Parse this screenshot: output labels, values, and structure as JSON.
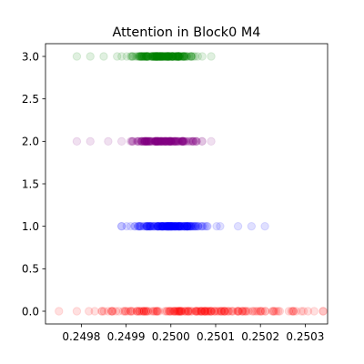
{
  "chart_data": {
    "type": "scatter",
    "title": "Attention in Block0 M4",
    "xlabel": "",
    "ylabel": "",
    "xlim": [
      0.24972,
      0.25035
    ],
    "ylim": [
      -0.15,
      3.15
    ],
    "x_ticks": [
      0.2498,
      0.2499,
      0.25,
      0.2501,
      0.2502,
      0.2503
    ],
    "x_tick_labels": [
      "0.2498",
      "0.2499",
      "0.2500",
      "0.2501",
      "0.2502",
      "0.2503"
    ],
    "y_ticks": [
      0,
      0.5,
      1,
      1.5,
      2,
      2.5,
      3
    ],
    "y_tick_labels": [
      "0.0",
      "0.5",
      "1.0",
      "1.5",
      "2.0",
      "2.5",
      "3.0"
    ],
    "grid": false,
    "legend": "none",
    "marker_opacity": 0.12,
    "series": [
      {
        "color": "#ff0000",
        "y": 0,
        "x_range": [
          0.24975,
          0.25034
        ],
        "x_core": [
          0.24985,
          0.25025
        ],
        "x_sample": [
          0.24975,
          0.24979,
          0.24983,
          0.24987,
          0.24991,
          0.24994,
          0.24997,
          0.25,
          0.25003,
          0.25006,
          0.25009,
          0.25012,
          0.25016,
          0.2502,
          0.25024,
          0.25028,
          0.25032,
          0.25034
        ]
      },
      {
        "color": "#0000ff",
        "y": 1,
        "x_range": [
          0.24989,
          0.25021
        ],
        "x_core": [
          0.24993,
          0.25007
        ],
        "x_sample": [
          0.24989,
          0.24991,
          0.24993,
          0.24995,
          0.24997,
          0.24999,
          0.25,
          0.25001,
          0.25003,
          0.25005,
          0.25008,
          0.25011,
          0.25015,
          0.25018,
          0.25021
        ]
      },
      {
        "color": "#800080",
        "y": 2,
        "x_range": [
          0.24979,
          0.25009
        ],
        "x_core": [
          0.24992,
          0.25005
        ],
        "x_sample": [
          0.24979,
          0.24982,
          0.24986,
          0.24989,
          0.24991,
          0.24993,
          0.24995,
          0.24997,
          0.24999,
          0.25,
          0.25001,
          0.25003,
          0.25005,
          0.25007,
          0.25009
        ]
      },
      {
        "color": "#008000",
        "y": 3,
        "x_range": [
          0.24979,
          0.25009
        ],
        "x_core": [
          0.24992,
          0.25004
        ],
        "x_sample": [
          0.24979,
          0.24982,
          0.24985,
          0.24988,
          0.24991,
          0.24993,
          0.24995,
          0.24997,
          0.24999,
          0.25,
          0.25001,
          0.25003,
          0.25005,
          0.25007,
          0.25009
        ]
      }
    ]
  }
}
